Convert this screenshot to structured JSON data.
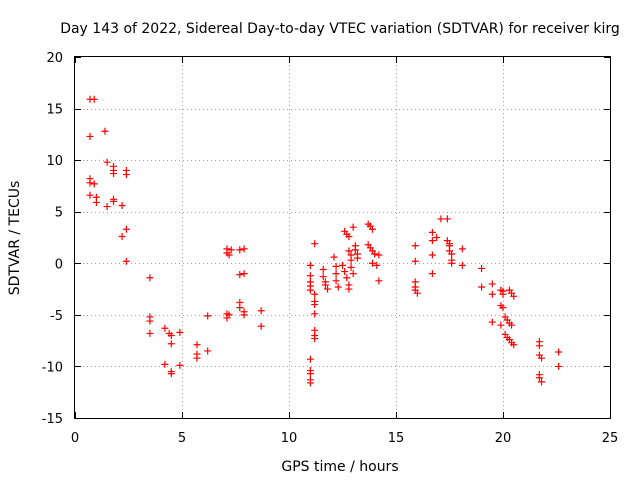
{
  "chart_data": {
    "type": "scatter",
    "title": "Day 143 of 2022, Sidereal Day-to-day VTEC variation (SDTVAR) for receiver kirg",
    "xlabel": "GPS time / hours",
    "ylabel": "SDTVAR / TECUs",
    "xlim": [
      0,
      25
    ],
    "ylim": [
      -15,
      20
    ],
    "xticks": [
      0,
      5,
      10,
      15,
      20,
      25
    ],
    "yticks": [
      -15,
      -10,
      -5,
      0,
      5,
      10,
      15,
      20
    ],
    "grid": true,
    "marker": "plus",
    "marker_color": "#ff0000",
    "series": [
      {
        "name": "SDTVAR",
        "points": [
          [
            0.7,
            15.9
          ],
          [
            0.9,
            15.9
          ],
          [
            0.7,
            12.3
          ],
          [
            1.4,
            12.8
          ],
          [
            1.5,
            9.8
          ],
          [
            1.8,
            9.4
          ],
          [
            1.8,
            9.0
          ],
          [
            1.8,
            8.7
          ],
          [
            2.4,
            9.0
          ],
          [
            2.4,
            8.6
          ],
          [
            0.7,
            8.2
          ],
          [
            0.7,
            7.8
          ],
          [
            0.9,
            7.7
          ],
          [
            0.7,
            6.6
          ],
          [
            1.0,
            6.4
          ],
          [
            1.0,
            5.9
          ],
          [
            1.5,
            5.5
          ],
          [
            1.8,
            6.2
          ],
          [
            1.8,
            6.0
          ],
          [
            2.2,
            5.6
          ],
          [
            2.2,
            2.6
          ],
          [
            2.4,
            3.3
          ],
          [
            2.4,
            0.2
          ],
          [
            3.5,
            -1.4
          ],
          [
            3.5,
            -5.2
          ],
          [
            3.5,
            -5.6
          ],
          [
            3.5,
            -6.8
          ],
          [
            4.2,
            -6.3
          ],
          [
            4.4,
            -6.8
          ],
          [
            4.5,
            -7.0
          ],
          [
            4.5,
            -7.8
          ],
          [
            4.9,
            -6.7
          ],
          [
            4.9,
            -9.9
          ],
          [
            4.2,
            -9.8
          ],
          [
            4.5,
            -10.5
          ],
          [
            4.5,
            -10.7
          ],
          [
            5.7,
            -7.9
          ],
          [
            5.7,
            -8.8
          ],
          [
            5.7,
            -9.2
          ],
          [
            6.2,
            -8.5
          ],
          [
            6.2,
            -5.1
          ],
          [
            7.1,
            -4.9
          ],
          [
            7.1,
            -5.3
          ],
          [
            7.2,
            -5.0
          ],
          [
            7.1,
            1.4
          ],
          [
            7.1,
            1.0
          ],
          [
            7.2,
            0.8
          ],
          [
            7.3,
            1.3
          ],
          [
            7.7,
            1.3
          ],
          [
            7.9,
            1.4
          ],
          [
            7.7,
            -1.1
          ],
          [
            7.9,
            -1.0
          ],
          [
            7.7,
            -3.8
          ],
          [
            7.7,
            -4.3
          ],
          [
            7.9,
            -4.7
          ],
          [
            7.9,
            -5.0
          ],
          [
            8.7,
            -4.6
          ],
          [
            8.7,
            -6.1
          ],
          [
            11.2,
            1.9
          ],
          [
            11.2,
            -3.0
          ],
          [
            11.2,
            -3.7
          ],
          [
            11.2,
            -4.0
          ],
          [
            11.2,
            -4.9
          ],
          [
            11.2,
            -6.5
          ],
          [
            11.2,
            -7.0
          ],
          [
            11.2,
            -7.3
          ],
          [
            11.0,
            -0.2
          ],
          [
            11.0,
            -1.2
          ],
          [
            11.0,
            -1.8
          ],
          [
            11.0,
            -2.2
          ],
          [
            11.0,
            -2.6
          ],
          [
            11.0,
            -9.3
          ],
          [
            11.0,
            -10.4
          ],
          [
            11.0,
            -10.7
          ],
          [
            11.0,
            -11.3
          ],
          [
            11.0,
            -11.6
          ],
          [
            11.6,
            -0.6
          ],
          [
            11.6,
            -1.3
          ],
          [
            11.7,
            -1.8
          ],
          [
            11.7,
            -2.1
          ],
          [
            11.8,
            -2.5
          ],
          [
            12.1,
            0.6
          ],
          [
            12.2,
            -0.3
          ],
          [
            12.2,
            -1.0
          ],
          [
            12.2,
            -1.7
          ],
          [
            12.3,
            -2.3
          ],
          [
            12.5,
            -0.2
          ],
          [
            12.6,
            -0.8
          ],
          [
            12.7,
            -1.4
          ],
          [
            12.8,
            -2.1
          ],
          [
            12.8,
            -2.5
          ],
          [
            12.6,
            3.1
          ],
          [
            12.7,
            2.8
          ],
          [
            12.8,
            2.6
          ],
          [
            12.8,
            1.2
          ],
          [
            12.9,
            0.8
          ],
          [
            12.9,
            0.3
          ],
          [
            12.9,
            -0.4
          ],
          [
            13.0,
            -1.0
          ],
          [
            13.0,
            3.5
          ],
          [
            13.1,
            1.7
          ],
          [
            13.1,
            1.3
          ],
          [
            13.2,
            0.9
          ],
          [
            13.2,
            0.5
          ],
          [
            13.7,
            3.8
          ],
          [
            13.8,
            3.6
          ],
          [
            13.9,
            3.3
          ],
          [
            13.7,
            1.8
          ],
          [
            13.8,
            1.5
          ],
          [
            13.9,
            1.2
          ],
          [
            14.0,
            0.9
          ],
          [
            13.9,
            0.0
          ],
          [
            14.1,
            -0.2
          ],
          [
            14.2,
            -1.7
          ],
          [
            14.2,
            0.8
          ],
          [
            15.9,
            1.7
          ],
          [
            15.9,
            0.2
          ],
          [
            15.9,
            -1.8
          ],
          [
            15.9,
            -2.3
          ],
          [
            15.9,
            -2.6
          ],
          [
            16.0,
            -2.9
          ],
          [
            16.7,
            3.0
          ],
          [
            16.7,
            2.2
          ],
          [
            16.7,
            0.8
          ],
          [
            16.7,
            -1.0
          ],
          [
            16.9,
            2.5
          ],
          [
            17.1,
            4.3
          ],
          [
            17.4,
            4.3
          ],
          [
            17.4,
            2.2
          ],
          [
            17.5,
            1.9
          ],
          [
            17.5,
            1.7
          ],
          [
            17.5,
            1.2
          ],
          [
            17.6,
            0.9
          ],
          [
            17.6,
            0.3
          ],
          [
            17.6,
            0.0
          ],
          [
            18.1,
            1.4
          ],
          [
            18.1,
            -0.2
          ],
          [
            19.0,
            -0.5
          ],
          [
            19.0,
            -2.3
          ],
          [
            19.5,
            -2.0
          ],
          [
            19.5,
            -3.0
          ],
          [
            19.5,
            -5.7
          ],
          [
            19.9,
            -2.6
          ],
          [
            20.0,
            -2.7
          ],
          [
            20.0,
            -3.0
          ],
          [
            19.9,
            -4.1
          ],
          [
            20.0,
            -4.3
          ],
          [
            20.1,
            -5.2
          ],
          [
            20.2,
            -5.5
          ],
          [
            20.3,
            -5.8
          ],
          [
            20.4,
            -6.0
          ],
          [
            19.9,
            -6.0
          ],
          [
            20.1,
            -6.9
          ],
          [
            20.2,
            -7.2
          ],
          [
            20.3,
            -7.4
          ],
          [
            20.4,
            -7.7
          ],
          [
            20.5,
            -7.9
          ],
          [
            20.3,
            -2.6
          ],
          [
            20.4,
            -2.9
          ],
          [
            20.5,
            -3.2
          ],
          [
            21.7,
            -7.6
          ],
          [
            21.7,
            -8.0
          ],
          [
            21.7,
            -8.9
          ],
          [
            21.8,
            -9.2
          ],
          [
            21.7,
            -10.8
          ],
          [
            21.7,
            -11.1
          ],
          [
            21.8,
            -11.5
          ],
          [
            22.6,
            -8.6
          ],
          [
            22.6,
            -10.0
          ]
        ]
      }
    ]
  }
}
